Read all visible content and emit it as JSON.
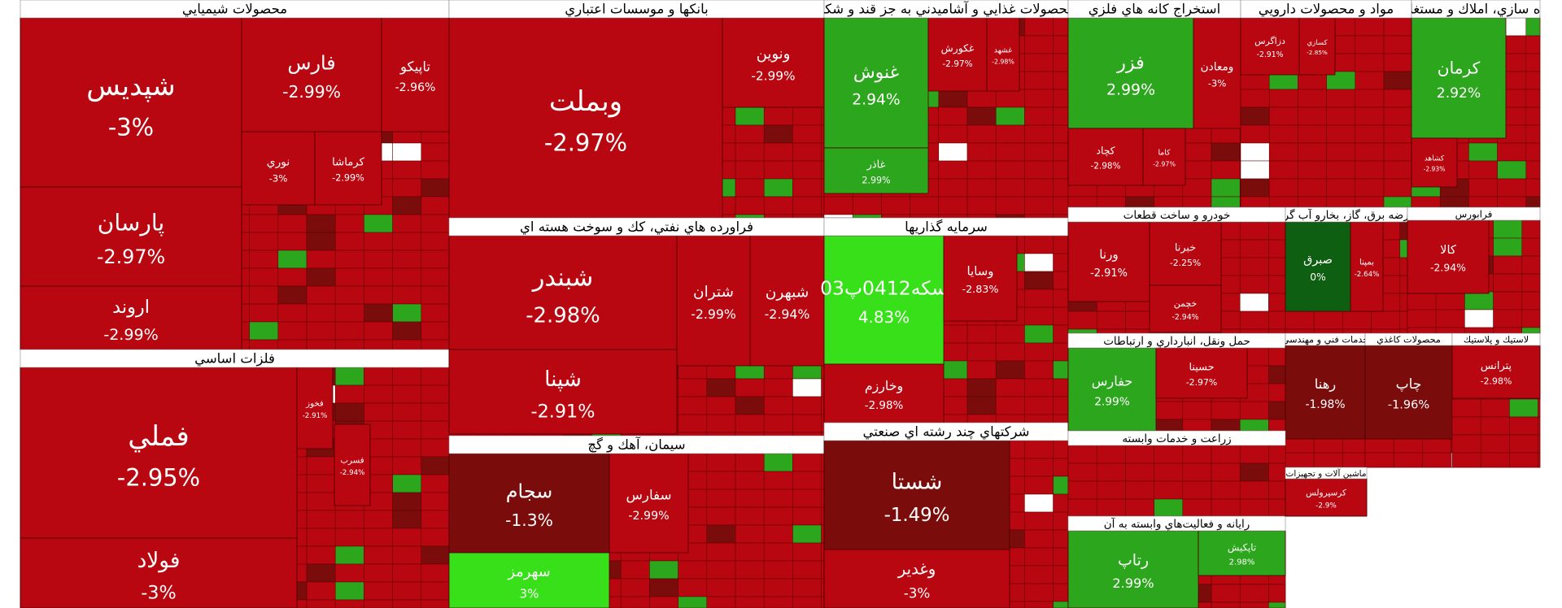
{
  "chart_data": {
    "type": "treemap",
    "title": "",
    "colors": {
      "deep_down": "#b80710",
      "dark_down": "#7a0c0c",
      "down": "#c0121a",
      "neutral_green": "#0f5f12",
      "up": "#2ca61c",
      "strong_up": "#38e019",
      "header_bg": "#ffffff",
      "header_text": "#000000"
    },
    "sectors": [
      {
        "name": "محصولات شيميايي",
        "stocks": [
          {
            "name": "شپديس",
            "change": "-3%"
          },
          {
            "name": "فارس",
            "change": "-2.99%"
          },
          {
            "name": "تاپيكو",
            "change": "-2.96%"
          },
          {
            "name": "نوري",
            "change": "-3%"
          },
          {
            "name": "كرماشا",
            "change": "-2.99%"
          },
          {
            "name": "پارسان",
            "change": "-2.97%"
          },
          {
            "name": "اروند",
            "change": "-2.99%"
          }
        ]
      },
      {
        "name": "بانكها و موسسات اعتباري",
        "stocks": [
          {
            "name": "وبملت",
            "change": "-2.97%"
          },
          {
            "name": "ونوين",
            "change": "-2.99%"
          }
        ]
      },
      {
        "name": "محصولات غذايي و آشاميدني به جز قند و شكر",
        "stocks": [
          {
            "name": "غنوش",
            "change": "2.94%"
          },
          {
            "name": "غاذر",
            "change": "2.99%"
          },
          {
            "name": "غكورش",
            "change": "-2.97%"
          },
          {
            "name": "غشهد",
            "change": "-2.98%"
          }
        ]
      },
      {
        "name": "استخراج كانه هاي فلزي",
        "stocks": [
          {
            "name": "فزر",
            "change": "2.99%"
          },
          {
            "name": "ومعادن",
            "change": "-3%"
          },
          {
            "name": "كچاد",
            "change": "-2.98%"
          },
          {
            "name": "كاما",
            "change": "-2.97%"
          }
        ]
      },
      {
        "name": "مواد و محصولات دارويي",
        "stocks": [
          {
            "name": "دزاگرس",
            "change": "-2.91%"
          },
          {
            "name": "كسازي",
            "change": "-2.85%"
          }
        ]
      },
      {
        "name": "انبوه سازي، املاك و مستغلات",
        "stocks": [
          {
            "name": "كرمان",
            "change": "2.92%"
          },
          {
            "name": "كشاهد",
            "change": "-2.93%"
          }
        ]
      },
      {
        "name": "فلزات اساسي",
        "stocks": [
          {
            "name": "فملي",
            "change": "-2.95%"
          },
          {
            "name": "فولاد",
            "change": "-3%"
          },
          {
            "name": "فخوز",
            "change": "-2.91%"
          },
          {
            "name": "فسرب",
            "change": "-2.94%"
          }
        ]
      },
      {
        "name": "فراورده هاي نفتي، كك و سوخت هسته اي",
        "stocks": [
          {
            "name": "شبندر",
            "change": "-2.98%"
          },
          {
            "name": "شتران",
            "change": "-2.99%"
          },
          {
            "name": "شبهرن",
            "change": "-2.94%"
          },
          {
            "name": "شپنا",
            "change": "-2.91%"
          }
        ]
      },
      {
        "name": "سرمايه گذاريها",
        "stocks": [
          {
            "name": "سكه0412پ03",
            "change": "4.83%"
          },
          {
            "name": "وسايا",
            "change": "-2.83%"
          },
          {
            "name": "وخارزم",
            "change": "-2.98%"
          }
        ]
      },
      {
        "name": "سيمان، آهك و گچ",
        "stocks": [
          {
            "name": "سجام",
            "change": "-1.3%"
          },
          {
            "name": "سفارس",
            "change": "-2.99%"
          },
          {
            "name": "سهرمز",
            "change": "3%"
          }
        ]
      },
      {
        "name": "شركتهاي چند رشته اي صنعتي",
        "stocks": [
          {
            "name": "شستا",
            "change": "-1.49%"
          },
          {
            "name": "وغدير",
            "change": "-3%"
          }
        ]
      },
      {
        "name": "خودرو و ساخت قطعات",
        "stocks": [
          {
            "name": "ورنا",
            "change": "-2.91%"
          },
          {
            "name": "خبرنا",
            "change": "-2.25%"
          },
          {
            "name": "خچمن",
            "change": "-2.94%"
          }
        ]
      },
      {
        "name": "عرضه برق، گاز، بخارو آب گرم",
        "stocks": [
          {
            "name": "صبرق",
            "change": "0%"
          },
          {
            "name": "بمپنا",
            "change": "-2.64%"
          }
        ]
      },
      {
        "name": "فرابورس",
        "stocks": [
          {
            "name": "كالا",
            "change": "-2.94%"
          }
        ]
      },
      {
        "name": "حمل ونقل، انبارداري و ارتباطات",
        "stocks": [
          {
            "name": "حفارس",
            "change": "2.99%"
          },
          {
            "name": "حسينا",
            "change": "-2.97%"
          }
        ]
      },
      {
        "name": "خدمات فني و مهندسي",
        "stocks": [
          {
            "name": "رهنا",
            "change": "-1.98%"
          }
        ]
      },
      {
        "name": "محصولات كاغذي",
        "stocks": [
          {
            "name": "چاپ",
            "change": "-1.96%"
          }
        ]
      },
      {
        "name": "لاستيك و پلاستيك",
        "stocks": [
          {
            "name": "پترانس",
            "change": "-2.98%"
          }
        ]
      },
      {
        "name": "زراعت و خدمات وابسته",
        "stocks": []
      },
      {
        "name": "رايانه و فعاليت‌هاي وابسته به آن",
        "stocks": [
          {
            "name": "رتاپ",
            "change": "2.99%"
          },
          {
            "name": "تاپكيش",
            "change": "2.98%"
          }
        ]
      },
      {
        "name": "ماشين آلات و تجهيزات",
        "stocks": [
          {
            "name": "كرسپرولس",
            "change": "-2.9%"
          }
        ]
      }
    ]
  }
}
